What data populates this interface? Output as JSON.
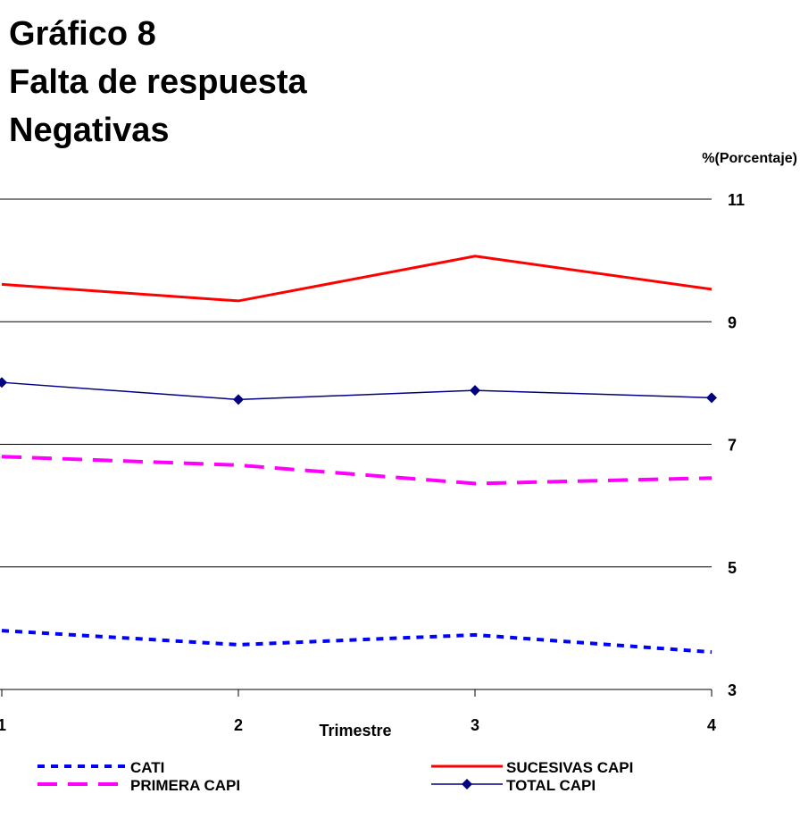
{
  "chart_data": {
    "type": "line",
    "title": [
      "Gráfico 8",
      "Falta de respuesta",
      "Negativas"
    ],
    "y_label": "%(Porcentaje)",
    "x_label": "Trimestre",
    "x": [
      1,
      2,
      3,
      4
    ],
    "xlim": [
      1,
      4
    ],
    "xticks": [
      1,
      2,
      3,
      4
    ],
    "ylim": [
      3,
      11
    ],
    "yticks": [
      3,
      5,
      7,
      9,
      11
    ],
    "grid": true,
    "legend": "bottom",
    "series": [
      {
        "name": "CATI",
        "color": "#0000ff",
        "dash": "dotted",
        "values": [
          3.96,
          3.73,
          3.89,
          3.61
        ]
      },
      {
        "name": "SUCESIVAS CAPI",
        "color": "#ff0000",
        "dash": "solid",
        "values": [
          9.61,
          9.34,
          10.07,
          9.53
        ]
      },
      {
        "name": "PRIMERA CAPI",
        "color": "#ff00ff",
        "dash": "dashed",
        "values": [
          6.8,
          6.66,
          6.36,
          6.45
        ]
      },
      {
        "name": "TOTAL CAPI",
        "color": "#000080",
        "dash": "solid",
        "marker": "diamond",
        "values": [
          8.01,
          7.73,
          7.88,
          7.76
        ]
      }
    ]
  }
}
